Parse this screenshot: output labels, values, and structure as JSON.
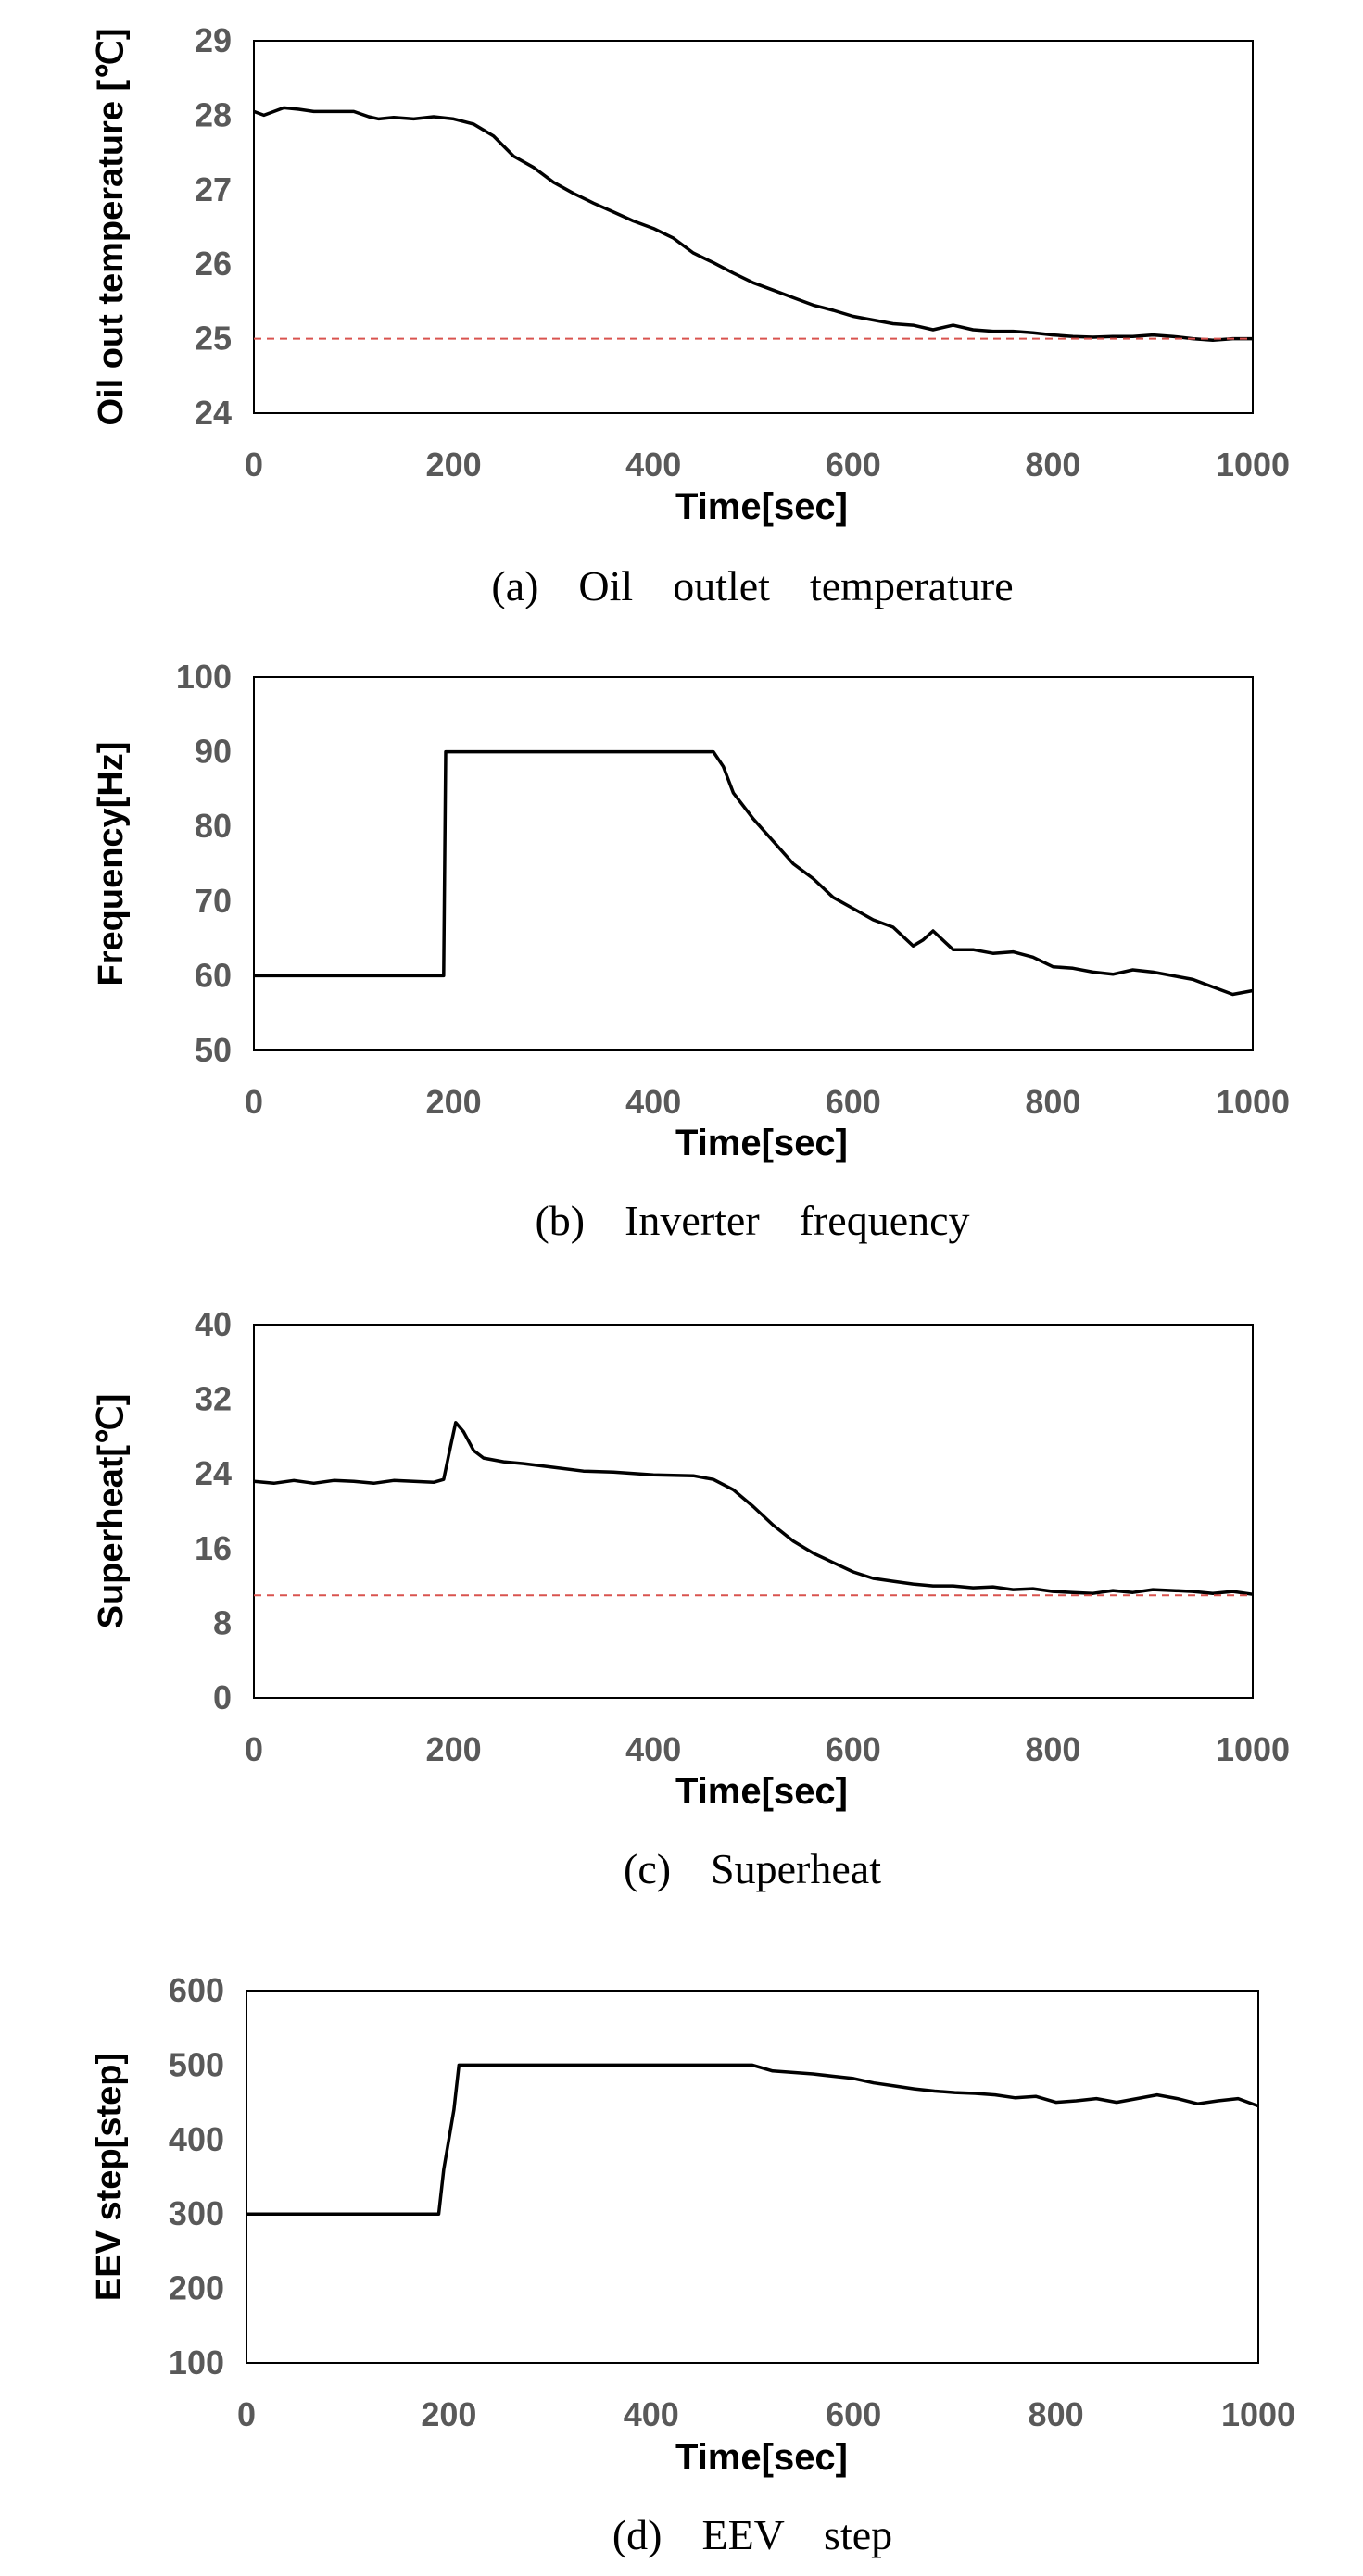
{
  "chart_data": [
    {
      "type": "line",
      "caption": "(a)  Oil  outlet  temperature",
      "xlabel": "Time[sec]",
      "ylabel": "Oil out temperature [℃]",
      "xlim": [
        0,
        1000
      ],
      "ylim": [
        24,
        29
      ],
      "xticks": [
        0,
        200,
        400,
        600,
        800,
        1000
      ],
      "yticks": [
        24,
        25,
        26,
        27,
        28,
        29
      ],
      "grid": false,
      "series": [
        {
          "style": "solid",
          "color": "#000000",
          "x": [
            0,
            10,
            20,
            30,
            45,
            60,
            80,
            100,
            115,
            125,
            140,
            160,
            180,
            200,
            220,
            240,
            260,
            280,
            300,
            320,
            340,
            360,
            380,
            400,
            420,
            440,
            460,
            480,
            500,
            520,
            540,
            560,
            580,
            600,
            620,
            640,
            660,
            680,
            700,
            720,
            740,
            760,
            780,
            800,
            820,
            840,
            860,
            880,
            900,
            920,
            940,
            960,
            980,
            1000
          ],
          "y": [
            28.05,
            28.0,
            28.05,
            28.1,
            28.08,
            28.05,
            28.05,
            28.05,
            27.98,
            27.95,
            27.97,
            27.95,
            27.98,
            27.95,
            27.88,
            27.72,
            27.45,
            27.3,
            27.1,
            26.95,
            26.82,
            26.7,
            26.58,
            26.48,
            26.35,
            26.15,
            26.02,
            25.88,
            25.75,
            25.65,
            25.55,
            25.45,
            25.38,
            25.3,
            25.25,
            25.2,
            25.18,
            25.12,
            25.18,
            25.12,
            25.1,
            25.1,
            25.08,
            25.05,
            25.03,
            25.02,
            25.03,
            25.03,
            25.05,
            25.03,
            25.0,
            24.98,
            25.0,
            25.0
          ]
        },
        {
          "style": "dashed",
          "color": "#d9534f",
          "x": [
            0,
            1000
          ],
          "y": [
            25,
            25
          ]
        }
      ]
    },
    {
      "type": "line",
      "caption": "(b)  Inverter  frequency",
      "xlabel": "Time[sec]",
      "ylabel": "Frequency[Hz]",
      "xlim": [
        0,
        1000
      ],
      "ylim": [
        50,
        100
      ],
      "xticks": [
        0,
        200,
        400,
        600,
        800,
        1000
      ],
      "yticks": [
        50,
        60,
        70,
        80,
        90,
        100
      ],
      "grid": false,
      "series": [
        {
          "style": "solid",
          "color": "#000000",
          "x": [
            0,
            190,
            192,
            300,
            400,
            460,
            470,
            480,
            500,
            520,
            540,
            560,
            580,
            600,
            620,
            640,
            660,
            670,
            680,
            700,
            720,
            740,
            760,
            780,
            800,
            820,
            840,
            860,
            880,
            900,
            920,
            940,
            960,
            980,
            1000
          ],
          "y": [
            60,
            60,
            90,
            90,
            90,
            90,
            88,
            84.5,
            81,
            78,
            75,
            73,
            70.5,
            69,
            67.5,
            66.5,
            64,
            64.8,
            66,
            63.5,
            63.5,
            63,
            63.2,
            62.5,
            61.2,
            61,
            60.5,
            60.2,
            60.8,
            60.5,
            60,
            59.5,
            58.5,
            57.5,
            58
          ]
        }
      ]
    },
    {
      "type": "line",
      "caption": "(c)  Superheat",
      "xlabel": "Time[sec]",
      "ylabel": "Superheat[℃]",
      "xlim": [
        0,
        1000
      ],
      "ylim": [
        0,
        40
      ],
      "xticks": [
        0,
        200,
        400,
        600,
        800,
        1000
      ],
      "yticks": [
        0,
        8,
        16,
        24,
        32,
        40
      ],
      "grid": false,
      "series": [
        {
          "style": "solid",
          "color": "#000000",
          "x": [
            0,
            20,
            40,
            60,
            80,
            100,
            120,
            140,
            160,
            180,
            190,
            196,
            202,
            210,
            220,
            230,
            250,
            270,
            300,
            330,
            360,
            400,
            440,
            460,
            480,
            500,
            520,
            540,
            560,
            580,
            600,
            620,
            640,
            660,
            680,
            700,
            720,
            740,
            760,
            780,
            800,
            820,
            840,
            860,
            880,
            900,
            920,
            940,
            960,
            980,
            1000
          ],
          "y": [
            23.2,
            23.0,
            23.3,
            23.0,
            23.3,
            23.2,
            23.0,
            23.3,
            23.2,
            23.1,
            23.4,
            26.5,
            29.5,
            28.5,
            26.5,
            25.7,
            25.3,
            25.1,
            24.7,
            24.3,
            24.2,
            23.9,
            23.8,
            23.4,
            22.3,
            20.5,
            18.5,
            16.8,
            15.5,
            14.5,
            13.5,
            12.8,
            12.5,
            12.2,
            12.0,
            12.0,
            11.8,
            11.9,
            11.6,
            11.7,
            11.4,
            11.3,
            11.2,
            11.5,
            11.3,
            11.6,
            11.5,
            11.4,
            11.2,
            11.4,
            11.1
          ]
        },
        {
          "style": "dashed",
          "color": "#d9534f",
          "x": [
            0,
            1000
          ],
          "y": [
            11,
            11
          ]
        }
      ]
    },
    {
      "type": "line",
      "caption": "(d)  EEV  step",
      "xlabel": "Time[sec]",
      "ylabel": "EEV step[step]",
      "xlim": [
        0,
        1000
      ],
      "ylim": [
        100,
        600
      ],
      "xticks": [
        0,
        200,
        400,
        600,
        800,
        1000
      ],
      "yticks": [
        100,
        200,
        300,
        400,
        500,
        600
      ],
      "grid": false,
      "series": [
        {
          "style": "solid",
          "color": "#000000",
          "x": [
            0,
            190,
            195,
            200,
            205,
            210,
            300,
            400,
            500,
            520,
            540,
            560,
            580,
            600,
            620,
            640,
            660,
            680,
            700,
            720,
            740,
            760,
            780,
            800,
            820,
            840,
            860,
            880,
            900,
            920,
            940,
            960,
            980,
            1000
          ],
          "y": [
            300,
            300,
            360,
            400,
            440,
            500,
            500,
            500,
            500,
            492,
            490,
            488,
            485,
            482,
            476,
            472,
            468,
            465,
            463,
            462,
            460,
            456,
            458,
            450,
            452,
            455,
            450,
            455,
            460,
            455,
            448,
            452,
            455,
            445
          ]
        }
      ]
    }
  ]
}
